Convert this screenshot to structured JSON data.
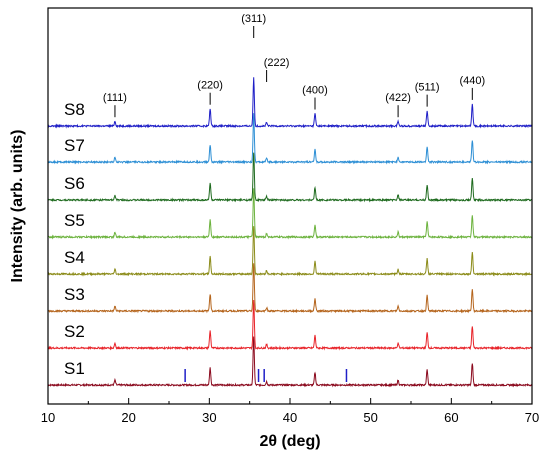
{
  "chart_data": {
    "type": "line",
    "xlabel": "2θ (deg)",
    "ylabel": "Intensity (arb. units)",
    "xlim": [
      10,
      70
    ],
    "xticks": [
      10,
      20,
      30,
      40,
      50,
      60,
      70
    ],
    "y_ticks_shown": false,
    "grid": false,
    "legend": "none",
    "peaks": [
      {
        "label": "(111)",
        "x": 18.3,
        "rel": 0.1
      },
      {
        "label": "(220)",
        "x": 30.1,
        "rel": 0.36
      },
      {
        "label": "(311)",
        "x": 35.5,
        "rel": 1.0
      },
      {
        "label": "(222)",
        "x": 37.1,
        "rel": 0.07
      },
      {
        "label": "(400)",
        "x": 43.1,
        "rel": 0.26
      },
      {
        "label": "(422)",
        "x": 53.4,
        "rel": 0.1
      },
      {
        "label": "(511)",
        "x": 57.0,
        "rel": 0.32
      },
      {
        "label": "(440)",
        "x": 62.6,
        "rel": 0.46
      }
    ],
    "impurity_markers_x": [
      27.0,
      36.1,
      36.8,
      47.0
    ],
    "series": [
      {
        "name": "S1",
        "color": "#8b0a1e"
      },
      {
        "name": "S2",
        "color": "#e8242a"
      },
      {
        "name": "S3",
        "color": "#b5651d"
      },
      {
        "name": "S4",
        "color": "#8c8c1a"
      },
      {
        "name": "S5",
        "color": "#6db33f"
      },
      {
        "name": "S6",
        "color": "#1f6b1f"
      },
      {
        "name": "S7",
        "color": "#2d8fd5"
      },
      {
        "name": "S8",
        "color": "#1f1fc7"
      }
    ]
  }
}
